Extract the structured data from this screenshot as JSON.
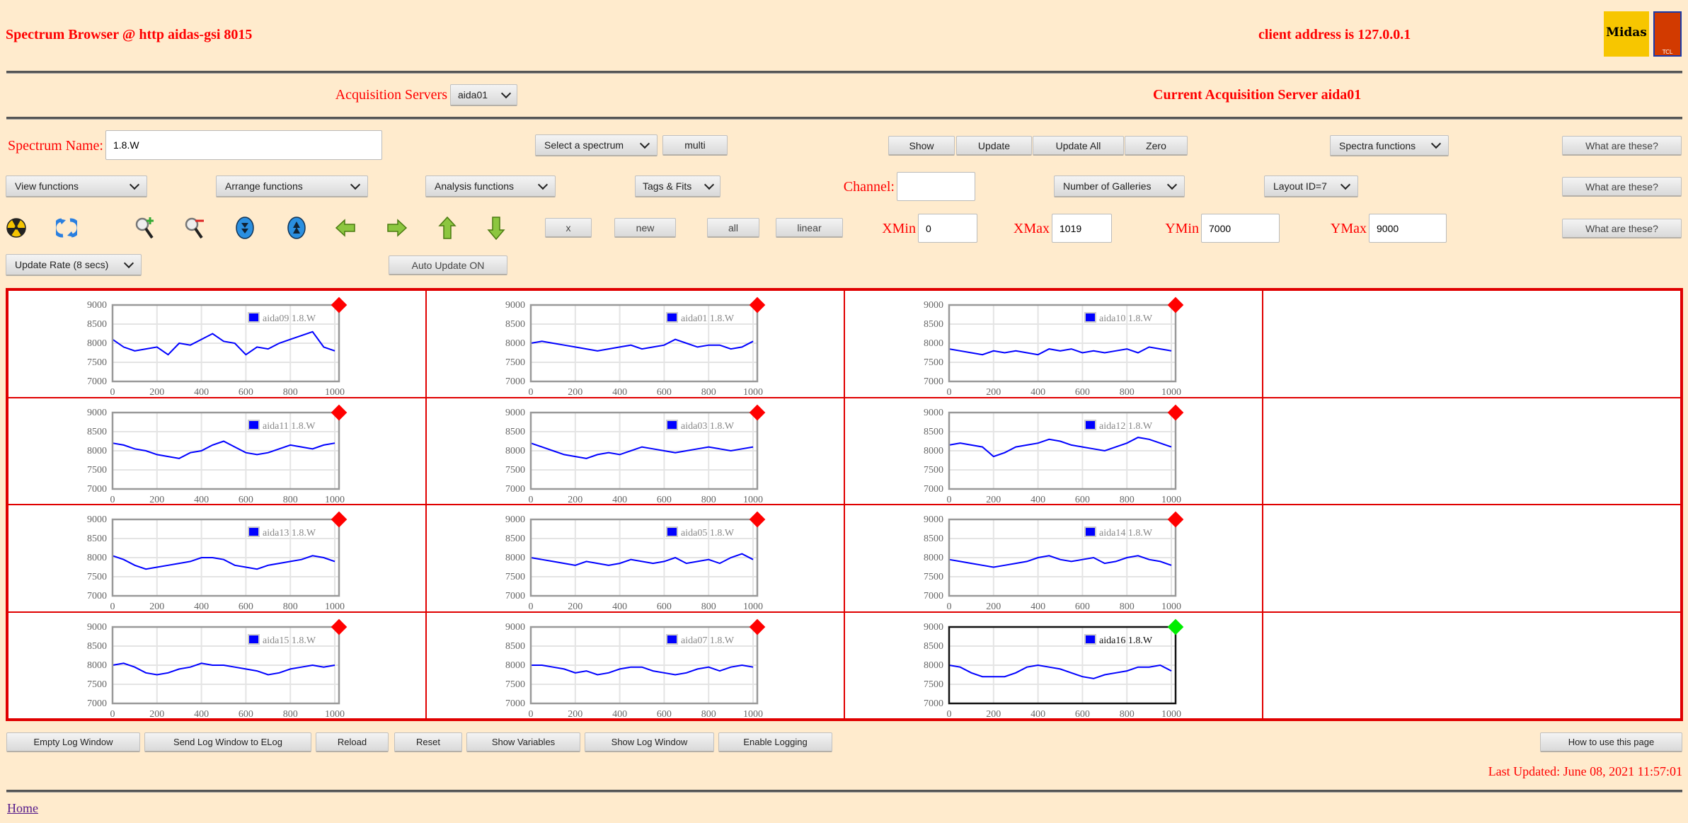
{
  "header": {
    "title": "Spectrum Browser @ http aidas-gsi 8015",
    "client_address": "client address is 127.0.0.1",
    "logos": [
      "Midas",
      "TCL POWERED"
    ]
  },
  "server": {
    "label": "Acquisition Servers",
    "selected": "aida01",
    "current": "Current Acquisition Server aida01"
  },
  "row1": {
    "spectrum_label": "Spectrum Name:",
    "spectrum_value": "1.8.W",
    "select_spectrum": "Select a spectrum",
    "multi": "multi",
    "show": "Show",
    "update": "Update",
    "update_all": "Update All",
    "zero": "Zero",
    "spectra_functions": "Spectra functions",
    "help": "What are these?"
  },
  "row2": {
    "view": "View functions",
    "arrange": "Arrange functions",
    "analysis": "Analysis functions",
    "tags": "Tags & Fits",
    "channel_label": "Channel:",
    "channel_value": "",
    "galleries": "Number of Galleries",
    "layout": "Layout ID=7",
    "help": "What are these?"
  },
  "row3": {
    "icons": [
      "radiation-icon",
      "refresh-icon",
      "zoom-in-icon",
      "zoom-out-icon",
      "scroll-down-icon",
      "scroll-up-icon",
      "arrow-left-icon",
      "arrow-right-icon",
      "arrow-up-icon",
      "arrow-down-icon"
    ],
    "x": "x",
    "new": "new",
    "all": "all",
    "linear": "linear",
    "xmin_label": "XMin",
    "xmin": "0",
    "xmax_label": "XMax",
    "xmax": "1019",
    "ymin_label": "YMin",
    "ymin": "7000",
    "ymax_label": "YMax",
    "ymax": "9000",
    "help": "What are these?"
  },
  "row4": {
    "update_rate": "Update Rate (8 secs)",
    "auto_update": "Auto Update ON"
  },
  "footer": {
    "buttons": [
      "Empty Log Window",
      "Send Log Window to ELog",
      "Reload",
      "Reset",
      "Show Variables",
      "Show Log Window",
      "Enable Logging"
    ],
    "how_to": "How to use this page",
    "last_updated": "Last Updated: June 08, 2021 11:57:01",
    "home": "Home"
  },
  "colors": {
    "background": "#ffebcd",
    "accent": "#ff0000",
    "series": "#0000ff",
    "marker_inactive": "#ff0000",
    "marker_active": "#00ee00"
  },
  "chart_data": {
    "type": "line",
    "xlim": [
      0,
      1019
    ],
    "ylim": [
      7000,
      9000
    ],
    "xticks": [
      "0",
      "200",
      "400",
      "600",
      "800",
      "1000"
    ],
    "yticks": [
      "9000",
      "8500",
      "8000",
      "7500",
      "7000"
    ],
    "grid": true,
    "legend_placement": "top-right",
    "x": [
      0,
      50,
      100,
      150,
      200,
      250,
      300,
      350,
      400,
      450,
      500,
      550,
      600,
      650,
      700,
      750,
      800,
      850,
      900,
      950,
      1000
    ],
    "charts": [
      {
        "name": "aida09 1.8.W",
        "selected": false,
        "values": [
          8100,
          7900,
          7800,
          7850,
          7900,
          7700,
          8000,
          7950,
          8100,
          8250,
          8050,
          8000,
          7700,
          7900,
          7850,
          8000,
          8100,
          8200,
          8300,
          7900,
          7800
        ]
      },
      {
        "name": "aida01 1.8.W",
        "selected": false,
        "values": [
          8000,
          8050,
          8000,
          7950,
          7900,
          7850,
          7800,
          7850,
          7900,
          7950,
          7850,
          7900,
          7950,
          8100,
          8000,
          7900,
          7950,
          7950,
          7850,
          7900,
          8050
        ]
      },
      {
        "name": "aida10 1.8.W",
        "selected": false,
        "values": [
          7850,
          7800,
          7750,
          7700,
          7800,
          7750,
          7800,
          7750,
          7700,
          7850,
          7800,
          7850,
          7750,
          7800,
          7750,
          7800,
          7850,
          7750,
          7900,
          7850,
          7800
        ]
      },
      {
        "name": "aida11 1.8.W",
        "selected": false,
        "values": [
          8200,
          8150,
          8050,
          8000,
          7900,
          7850,
          7800,
          7950,
          8000,
          8150,
          8250,
          8100,
          7950,
          7900,
          7950,
          8050,
          8150,
          8100,
          8050,
          8150,
          8200
        ]
      },
      {
        "name": "aida03 1.8.W",
        "selected": false,
        "values": [
          8200,
          8100,
          8000,
          7900,
          7850,
          7800,
          7900,
          7950,
          7900,
          8000,
          8100,
          8050,
          8000,
          7950,
          8000,
          8050,
          8100,
          8050,
          8000,
          8050,
          8100
        ]
      },
      {
        "name": "aida12 1.8.W",
        "selected": false,
        "values": [
          8150,
          8200,
          8150,
          8100,
          7850,
          7950,
          8100,
          8150,
          8200,
          8300,
          8250,
          8150,
          8100,
          8050,
          8000,
          8100,
          8200,
          8350,
          8300,
          8200,
          8100
        ]
      },
      {
        "name": "aida13 1.8.W",
        "selected": false,
        "values": [
          8050,
          7950,
          7800,
          7700,
          7750,
          7800,
          7850,
          7900,
          8000,
          8000,
          7950,
          7800,
          7750,
          7700,
          7800,
          7850,
          7900,
          7950,
          8050,
          8000,
          7900
        ]
      },
      {
        "name": "aida05 1.8.W",
        "selected": false,
        "values": [
          8000,
          7950,
          7900,
          7850,
          7800,
          7900,
          7850,
          7800,
          7850,
          7950,
          7900,
          7850,
          7900,
          8000,
          7850,
          7900,
          7950,
          7850,
          8000,
          8100,
          7950
        ]
      },
      {
        "name": "aida14 1.8.W",
        "selected": false,
        "values": [
          7950,
          7900,
          7850,
          7800,
          7750,
          7800,
          7850,
          7900,
          8000,
          8050,
          7950,
          7900,
          7950,
          8000,
          7850,
          7900,
          8000,
          8050,
          7950,
          7900,
          7800
        ]
      },
      {
        "name": "aida15 1.8.W",
        "selected": false,
        "values": [
          8000,
          8050,
          7950,
          7800,
          7750,
          7800,
          7900,
          7950,
          8050,
          8000,
          8000,
          7950,
          7900,
          7850,
          7750,
          7800,
          7900,
          7950,
          8000,
          7950,
          8000
        ]
      },
      {
        "name": "aida07 1.8.W",
        "selected": false,
        "values": [
          8000,
          8000,
          7950,
          7900,
          7800,
          7850,
          7750,
          7800,
          7900,
          7950,
          7950,
          7850,
          7800,
          7750,
          7800,
          7900,
          7950,
          7850,
          7950,
          8000,
          7950
        ]
      },
      {
        "name": "aida16 1.8.W",
        "selected": true,
        "values": [
          8000,
          7950,
          7800,
          7700,
          7700,
          7700,
          7800,
          7950,
          8000,
          7950,
          7900,
          7800,
          7700,
          7650,
          7750,
          7800,
          7850,
          7950,
          7950,
          8000,
          7850
        ]
      }
    ]
  }
}
